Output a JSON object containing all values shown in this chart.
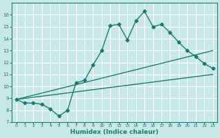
{
  "bg_color": "#c8e8e8",
  "grid_color": "#ffffff",
  "line_color": "#1a7a6e",
  "marker": "D",
  "marker_size": 2.5,
  "line_width": 1.0,
  "xlabel": "Humidex (Indice chaleur)",
  "xlabel_fontsize": 6.5,
  "xlabel_fontweight": "bold",
  "ylim": [
    7,
    17
  ],
  "xlim": [
    -0.5,
    23.5
  ],
  "yticks": [
    7,
    8,
    9,
    10,
    11,
    12,
    13,
    14,
    15,
    16
  ],
  "xticks": [
    0,
    1,
    2,
    3,
    4,
    5,
    6,
    7,
    8,
    9,
    10,
    11,
    12,
    13,
    14,
    15,
    16,
    17,
    18,
    19,
    20,
    21,
    22,
    23
  ],
  "tick_labelsize": 4.5,
  "series1_x": [
    0,
    1,
    2,
    3,
    4,
    5,
    6,
    7,
    8,
    9,
    10,
    11,
    12,
    13,
    14,
    15,
    16,
    17,
    18,
    19,
    20,
    21,
    22,
    23
  ],
  "series1_y": [
    8.9,
    8.6,
    8.6,
    8.5,
    8.1,
    7.5,
    8.0,
    10.3,
    10.5,
    11.8,
    13.0,
    15.1,
    15.2,
    13.9,
    15.5,
    16.3,
    15.0,
    15.2,
    14.5,
    13.7,
    13.0,
    12.5,
    11.9,
    11.5
  ],
  "series2_x": [
    0,
    23
  ],
  "series2_y": [
    8.9,
    11.0
  ],
  "series3_x": [
    0,
    23
  ],
  "series3_y": [
    8.9,
    13.0
  ],
  "figsize": [
    3.2,
    2.0
  ],
  "dpi": 100
}
